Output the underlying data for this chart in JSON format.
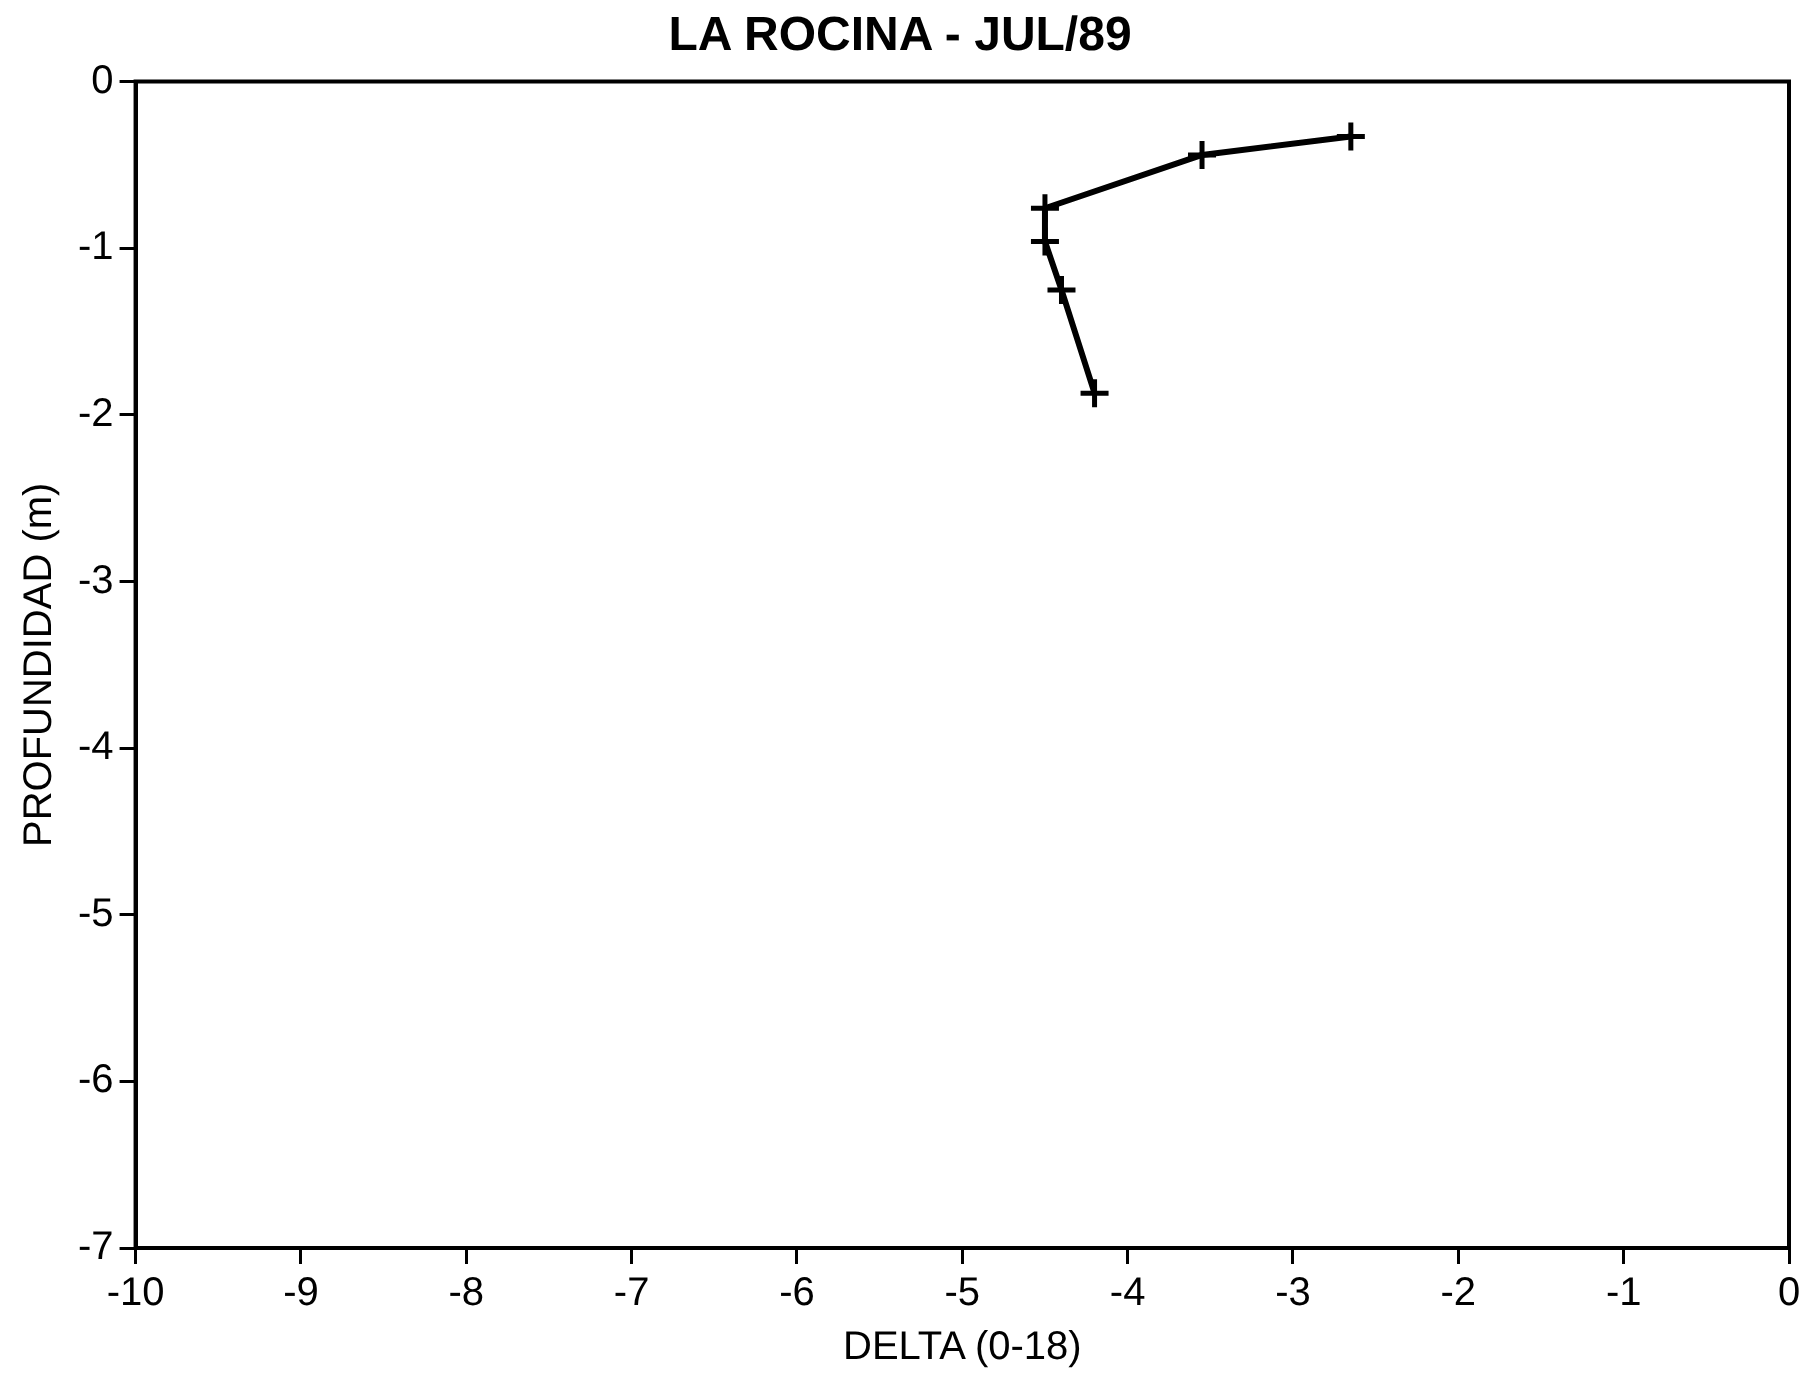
{
  "chart_data": {
    "type": "line",
    "title": "LA ROCINA - JUL/89",
    "xlabel": "DELTA (0-18)",
    "ylabel": "PROFUNDIDAD (m)",
    "x": [
      -2.65,
      -3.55,
      -4.5,
      -4.5,
      -4.4,
      -4.2
    ],
    "series": [
      {
        "color": "#000000",
        "values": [
          -0.33,
          -0.44,
          -0.76,
          -0.96,
          -1.25,
          -1.87
        ]
      }
    ],
    "xlim": [
      -10,
      0
    ],
    "xticks": [
      -10,
      -9,
      -8,
      -7,
      -6,
      -5,
      -4,
      -3,
      -2,
      -1,
      0
    ],
    "ylim": [
      -7,
      0
    ],
    "yticks": [
      -7,
      -6,
      -5,
      -4,
      -3,
      -2,
      -1,
      0
    ],
    "grid": false,
    "legend": false,
    "marker": "cross",
    "line_style": "solid"
  }
}
